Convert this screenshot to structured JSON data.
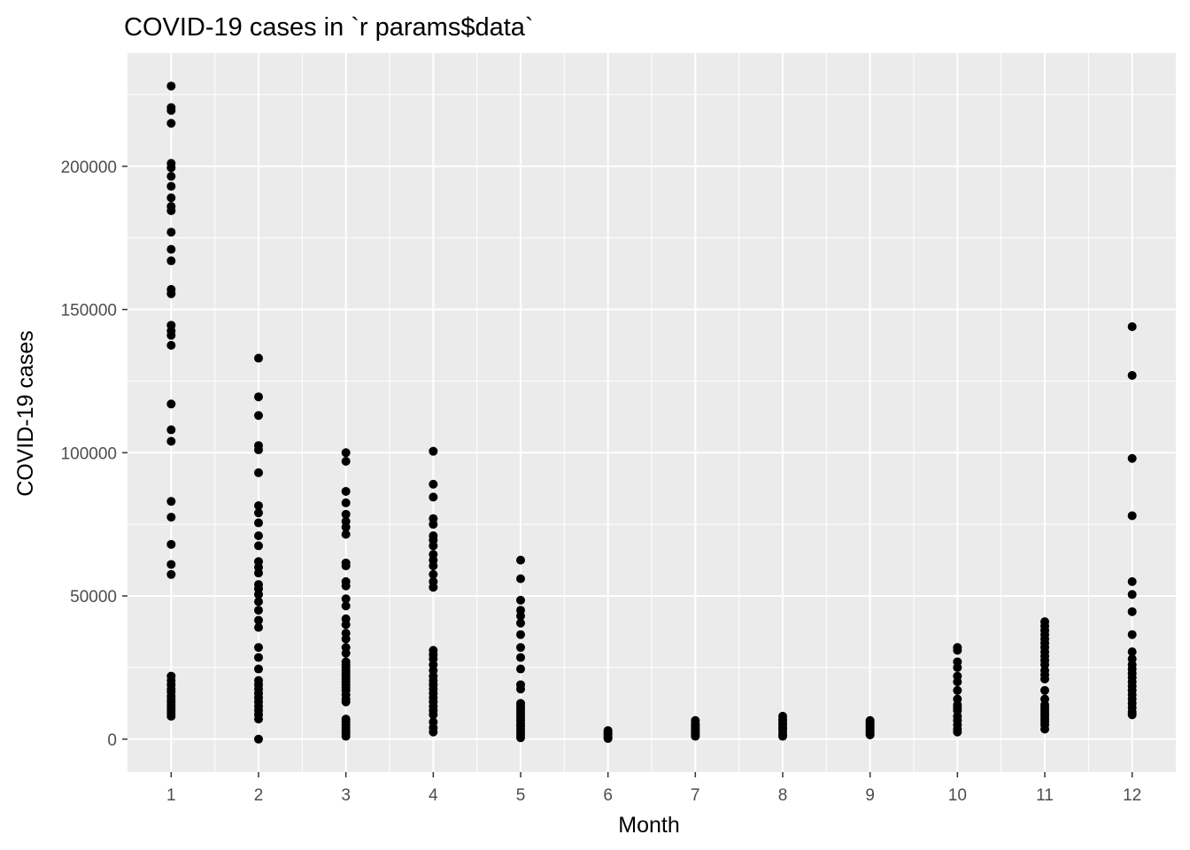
{
  "chart_data": {
    "type": "scatter",
    "title": "COVID-19 cases in `r params$data`",
    "xlabel": "Month",
    "ylabel": "COVID-19 cases",
    "x_ticks": [
      1,
      2,
      3,
      4,
      5,
      6,
      7,
      8,
      9,
      10,
      11,
      12
    ],
    "y_ticks": [
      0,
      50000,
      100000,
      150000,
      200000
    ],
    "xlim": [
      0.5,
      12.5
    ],
    "ylim": [
      -11500,
      239500
    ],
    "grid": true,
    "legend": "none",
    "colors": {
      "panel": "#ebebeb",
      "grid": "#ffffff",
      "point": "#000000",
      "tick_text": "#4d4d4d",
      "tick_mark": "#333333"
    },
    "series": [
      {
        "month": 1,
        "values": [
          228000,
          220500,
          219500,
          215000,
          201000,
          199500,
          196500,
          193000,
          189000,
          186000,
          184500,
          177000,
          171000,
          167000,
          157000,
          155500,
          144500,
          142500,
          141000,
          137500,
          117000,
          108000,
          104000,
          83000,
          77500,
          68000,
          61000,
          57500,
          22000,
          20500,
          19000,
          17500,
          16500,
          15000,
          14000,
          13000,
          12000,
          11000,
          10000,
          9000,
          8000
        ]
      },
      {
        "month": 2,
        "values": [
          133000,
          119500,
          113000,
          102500,
          101000,
          93000,
          81500,
          79000,
          75500,
          71000,
          67500,
          62000,
          60000,
          58000,
          54000,
          52500,
          50500,
          48000,
          45000,
          41500,
          39000,
          32000,
          28500,
          24500,
          20500,
          19000,
          17500,
          16000,
          14500,
          13000,
          11500,
          10000,
          8500,
          7000,
          0
        ]
      },
      {
        "month": 3,
        "values": [
          100000,
          97000,
          86500,
          82500,
          78500,
          76000,
          74000,
          71500,
          61500,
          60500,
          55000,
          53500,
          49000,
          46500,
          42000,
          40000,
          37000,
          35000,
          32000,
          30000,
          27000,
          26000,
          25000,
          24000,
          23000,
          22000,
          21000,
          20000,
          19000,
          18000,
          17000,
          15500,
          14000,
          13000,
          7000,
          6000,
          5000,
          4000,
          3000,
          2000,
          1000
        ]
      },
      {
        "month": 4,
        "values": [
          100500,
          89000,
          84500,
          77000,
          75000,
          71000,
          69500,
          67500,
          64500,
          62500,
          60500,
          57500,
          55000,
          53000,
          31000,
          29500,
          28000,
          26000,
          24000,
          22000,
          20500,
          19000,
          17500,
          16000,
          14500,
          13000,
          11500,
          10000,
          8500,
          6000,
          4000,
          2500
        ]
      },
      {
        "month": 5,
        "values": [
          62500,
          56000,
          48500,
          45000,
          43000,
          40500,
          36500,
          32000,
          28500,
          24500,
          19000,
          17500,
          12500,
          11500,
          10500,
          9500,
          8500,
          7500,
          6500,
          5500,
          4500,
          3500,
          2500,
          1500,
          500
        ]
      },
      {
        "month": 6,
        "values": [
          3000,
          2500,
          2000,
          1500,
          1000,
          500,
          200
        ]
      },
      {
        "month": 7,
        "values": [
          6500,
          5500,
          5000,
          4500,
          4000,
          3500,
          3000,
          2500,
          2000,
          1500,
          1000
        ]
      },
      {
        "month": 8,
        "values": [
          8000,
          7000,
          6500,
          5500,
          5000,
          4000,
          3500,
          2500,
          1500,
          1000
        ]
      },
      {
        "month": 9,
        "values": [
          6500,
          6000,
          5500,
          5000,
          4500,
          4000,
          3500,
          3000,
          2500,
          2000,
          1500
        ]
      },
      {
        "month": 10,
        "values": [
          32000,
          31000,
          27000,
          25000,
          22000,
          20000,
          17000,
          14000,
          12000,
          11000,
          10000,
          8000,
          6500,
          5000,
          3500,
          2500
        ]
      },
      {
        "month": 11,
        "values": [
          41000,
          39500,
          38000,
          36500,
          35000,
          33500,
          32000,
          30500,
          29000,
          27500,
          26000,
          24000,
          22500,
          21000,
          17000,
          14000,
          12000,
          11000,
          10000,
          9000,
          8000,
          7000,
          6000,
          5000,
          3500
        ]
      },
      {
        "month": 12,
        "values": [
          144000,
          127000,
          98000,
          78000,
          55000,
          50500,
          44500,
          36500,
          30500,
          28000,
          26000,
          24500,
          23000,
          21500,
          20000,
          18500,
          17000,
          15500,
          14000,
          12500,
          11000,
          9500,
          8500
        ]
      }
    ]
  }
}
